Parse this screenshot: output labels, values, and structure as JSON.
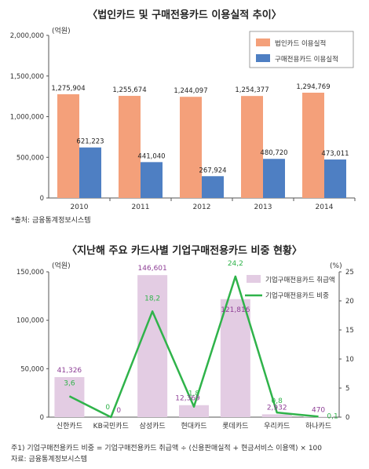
{
  "chart_data": [
    {
      "type": "bar",
      "title": "〈법인카드 및 구매전용카드 이용실적 추이〉",
      "unit_label": "(억원)",
      "categories": [
        "2010",
        "2011",
        "2012",
        "2013",
        "2014"
      ],
      "series": [
        {
          "name": "법인카드 이용실적",
          "values": [
            1275904,
            1255674,
            1244097,
            1254377,
            1294769
          ],
          "labels": [
            "1,275,904",
            "1,255,674",
            "1,244,097",
            "1,254,377",
            "1,294,769"
          ],
          "color": "#F4A07A"
        },
        {
          "name": "구매전용카드 이용실적",
          "values": [
            621223,
            441040,
            267924,
            480720,
            473011
          ],
          "labels": [
            "621,223",
            "441,040",
            "267,924",
            "480,720",
            "473,011"
          ],
          "color": "#4E7FC3"
        }
      ],
      "ylim": [
        0,
        2000000
      ],
      "yticks": [
        "0",
        "500,000",
        "1,000,000",
        "1,500,000",
        "2,000,000"
      ],
      "ytick_values": [
        0,
        500000,
        1000000,
        1500000,
        2000000
      ],
      "legend_position": "top-right",
      "source": "*출처: 금융통계정보시스템"
    },
    {
      "type": "bar",
      "title": "〈지난해 주요 카드사별 기업구매전용카드 비중 현황〉",
      "left_unit_label": "(억원)",
      "right_unit_label": "(%)",
      "categories": [
        "신한카드",
        "KB국민카드",
        "삼성카드",
        "현대카드",
        "롯데카드",
        "우리카드",
        "하나카드"
      ],
      "series": [
        {
          "name": "기업구매전용카드 취급액",
          "type": "bar",
          "axis": "left",
          "values": [
            41326,
            0,
            146601,
            12369,
            121816,
            2932,
            470
          ],
          "labels": [
            "41,326",
            "0",
            "146,601",
            "12,369",
            "121,816",
            "2,932",
            "470"
          ],
          "color": "#E3CCE3",
          "label_color": "#8E3F96"
        },
        {
          "name": "기업구매전용카드 비중",
          "type": "line",
          "axis": "right",
          "values": [
            3.6,
            0,
            18.2,
            1.8,
            24.2,
            0.8,
            0.1
          ],
          "labels": [
            "3,6",
            "0",
            "18,2",
            "1,8",
            "24,2",
            "0,8",
            "0,1"
          ],
          "color": "#2FB34A"
        }
      ],
      "ylim_left": [
        0,
        150000
      ],
      "yticks_left": [
        "0",
        "50,000",
        "100,000",
        "150,000"
      ],
      "ytick_values_left": [
        0,
        50000,
        100000,
        150000
      ],
      "ylim_right": [
        0,
        25
      ],
      "yticks_right": [
        "0",
        "5",
        "10",
        "15",
        "20",
        "25"
      ],
      "ytick_values_right": [
        0,
        5,
        10,
        15,
        20,
        25
      ],
      "legend_position": "top-right",
      "note": "주1) 기업구매전용카드 비중 = 기업구매전용카드 취급액 ÷ (신용판매실적 + 현금서비스 이용액) × 100",
      "source": "자료: 금융통계정보시스템"
    }
  ]
}
